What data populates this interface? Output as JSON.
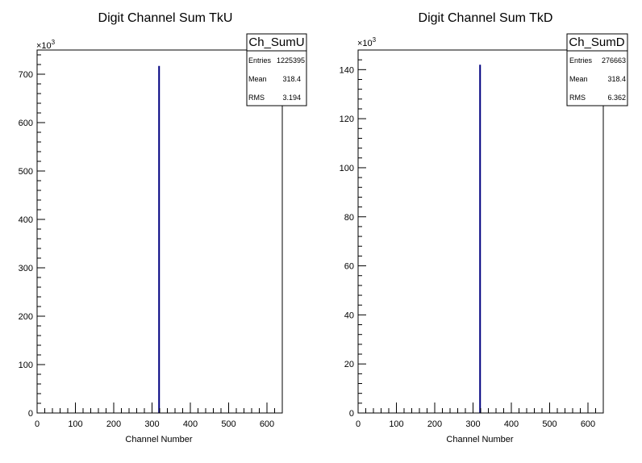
{
  "chart_data": [
    {
      "type": "bar",
      "title": "Digit Channel Sum TkU",
      "xlabel": "Channel Number",
      "ylabel": "",
      "xlim": [
        0,
        640
      ],
      "ylim": [
        0,
        750
      ],
      "y_multiplier": "×10",
      "y_multiplier_exp": "3",
      "x_ticks": [
        0,
        100,
        200,
        300,
        400,
        500,
        600
      ],
      "y_ticks": [
        0,
        100,
        200,
        300,
        400,
        500,
        600,
        700
      ],
      "series": [
        {
          "x": [
            318.4
          ],
          "values": [
            717
          ]
        }
      ],
      "color": "#00007f",
      "stats": {
        "name": "Ch_SumU",
        "rows": [
          {
            "key": "Entries",
            "value": "1225395"
          },
          {
            "key": "Mean",
            "value": "318.4"
          },
          {
            "key": "RMS",
            "value": "3.194"
          }
        ]
      },
      "grid": false
    },
    {
      "type": "bar",
      "title": "Digit Channel Sum TkD",
      "xlabel": "Channel Number",
      "ylabel": "",
      "xlim": [
        0,
        640
      ],
      "ylim": [
        0,
        148
      ],
      "y_multiplier": "×10",
      "y_multiplier_exp": "3",
      "x_ticks": [
        0,
        100,
        200,
        300,
        400,
        500,
        600
      ],
      "y_ticks": [
        0,
        20,
        40,
        60,
        80,
        100,
        120,
        140
      ],
      "series": [
        {
          "x": [
            318.4
          ],
          "values": [
            142
          ]
        }
      ],
      "color": "#00007f",
      "stats": {
        "name": "Ch_SumD",
        "rows": [
          {
            "key": "Entries",
            "value": "276663"
          },
          {
            "key": "Mean",
            "value": "318.4"
          },
          {
            "key": "RMS",
            "value": "6.362"
          }
        ]
      },
      "grid": false
    }
  ]
}
